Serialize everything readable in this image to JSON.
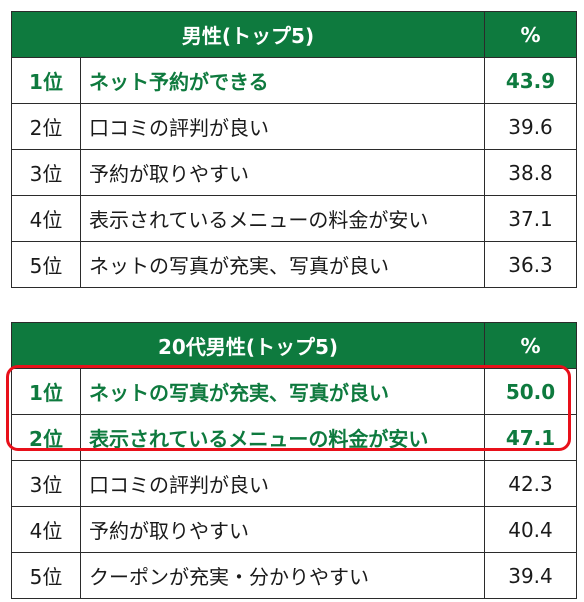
{
  "tables": [
    {
      "title": "男性(トップ5)",
      "pct_header": "%",
      "rows": [
        {
          "rank": "1位",
          "item": "ネット予約ができる",
          "pct": "43.9",
          "highlight": true
        },
        {
          "rank": "2位",
          "item": "口コミの評判が良い",
          "pct": "39.6",
          "highlight": false
        },
        {
          "rank": "3位",
          "item": "予約が取りやすい",
          "pct": "38.8",
          "highlight": false
        },
        {
          "rank": "4位",
          "item": "表示されているメニューの料金が安い",
          "pct": "37.1",
          "highlight": false
        },
        {
          "rank": "5位",
          "item": "ネットの写真が充実、写真が良い",
          "pct": "36.3",
          "highlight": false
        }
      ]
    },
    {
      "title": "20代男性(トップ5)",
      "pct_header": "%",
      "rows": [
        {
          "rank": "1位",
          "item": "ネットの写真が充実、写真が良い",
          "pct": "50.0",
          "highlight": true
        },
        {
          "rank": "2位",
          "item": "表示されているメニューの料金が安い",
          "pct": "47.1",
          "highlight": true
        },
        {
          "rank": "3位",
          "item": "口コミの評判が良い",
          "pct": "42.3",
          "highlight": false
        },
        {
          "rank": "4位",
          "item": "予約が取りやすい",
          "pct": "40.4",
          "highlight": false
        },
        {
          "rank": "5位",
          "item": "クーポンが充実・分かりやすい",
          "pct": "39.4",
          "highlight": false
        }
      ]
    }
  ],
  "colors": {
    "header_bg": "#0e7a3e",
    "highlight_text": "#0e7a3e",
    "frame": "#e8101a"
  }
}
